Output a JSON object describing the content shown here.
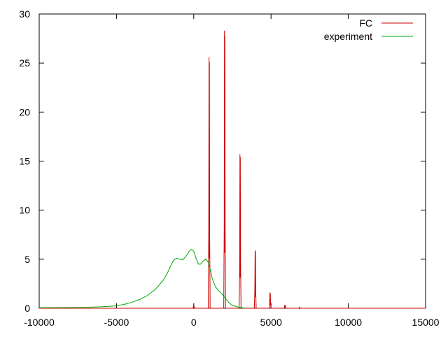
{
  "chart_data": {
    "type": "line",
    "title": "",
    "xlabel": "",
    "ylabel": "",
    "xlim": [
      -10000,
      15000
    ],
    "ylim": [
      0,
      30
    ],
    "x_ticks": [
      -10000,
      -5000,
      0,
      5000,
      10000,
      15000
    ],
    "x_tick_labels": [
      "-10000",
      "-5000",
      "0",
      "5000",
      "10000",
      "15000"
    ],
    "y_ticks": [
      0,
      5,
      10,
      15,
      20,
      25,
      30
    ],
    "y_tick_labels": [
      "0",
      "5",
      "10",
      "15",
      "20",
      "25",
      "30"
    ],
    "grid": false,
    "legend": {
      "position": "top-right"
    },
    "series": [
      {
        "name": "FC",
        "color": "#cc0000",
        "style": "spikes",
        "peaks": [
          {
            "x": 0,
            "y": 0.3
          },
          {
            "x": 1000,
            "y": 25.6
          },
          {
            "x": 2000,
            "y": 28.3
          },
          {
            "x": 3000,
            "y": 15.7
          },
          {
            "x": 3980,
            "y": 5.9
          },
          {
            "x": 4940,
            "y": 1.6
          },
          {
            "x": 5900,
            "y": 0.35
          },
          {
            "x": 6850,
            "y": 0.08
          }
        ]
      },
      {
        "name": "experiment",
        "color": "#00aa00",
        "style": "line",
        "x": [
          -10000,
          -8000,
          -7000,
          -6000,
          -5500,
          -5000,
          -4500,
          -4000,
          -3500,
          -3000,
          -2500,
          -2000,
          -1700,
          -1500,
          -1300,
          -1100,
          -900,
          -700,
          -500,
          -300,
          -150,
          0,
          150,
          300,
          450,
          600,
          750,
          900,
          1050,
          1200,
          1400,
          1600,
          1800,
          2000,
          2200,
          2400,
          2600,
          2800,
          3000,
          3200,
          3400
        ],
        "y": [
          0.05,
          0.07,
          0.1,
          0.15,
          0.2,
          0.25,
          0.4,
          0.6,
          0.9,
          1.3,
          1.9,
          2.8,
          3.6,
          4.3,
          4.9,
          5.1,
          5.0,
          4.95,
          5.3,
          5.8,
          6.0,
          5.8,
          5.1,
          4.5,
          4.5,
          4.8,
          5.0,
          4.8,
          4.1,
          3.0,
          2.2,
          1.8,
          1.5,
          1.1,
          0.7,
          0.4,
          0.25,
          0.15,
          0.08,
          0.04,
          0.02
        ]
      }
    ]
  }
}
